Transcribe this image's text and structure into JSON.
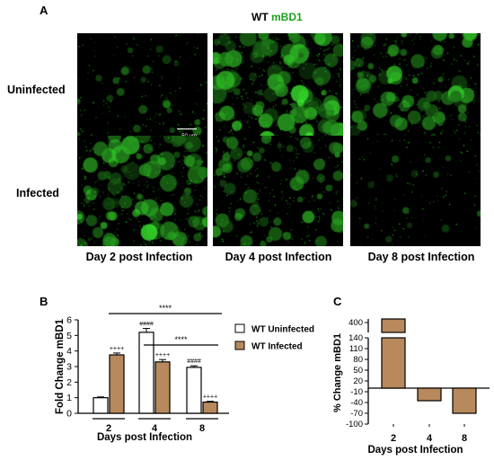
{
  "panel_a": {
    "letter": "A",
    "title_prefix": "WT",
    "title_marker": "mBD1",
    "row_labels": [
      "Uninfected",
      "Infected"
    ],
    "col_labels": [
      "Day 2 post Infection",
      "Day 4 post Infection",
      "Day 8 post Infection"
    ],
    "scale_bar": "50 μm",
    "fluorescence_color": "#2fd42f",
    "intensity": [
      [
        0.25,
        0.9,
        0.7
      ],
      [
        0.85,
        0.6,
        0.15
      ]
    ]
  },
  "chart_data": [
    {
      "panel": "B",
      "type": "bar",
      "title": "",
      "xlabel": "Days post Infection",
      "ylabel": "Fold Change mBD1",
      "categories": [
        "2",
        "4",
        "8"
      ],
      "ylim": [
        0,
        6
      ],
      "yticks": [
        "0",
        "1",
        "2",
        "3",
        "4",
        "5",
        "6"
      ],
      "series": [
        {
          "name": "WT Uninfected",
          "color": "#ffffff",
          "values": [
            1.0,
            5.2,
            2.95
          ],
          "errors": [
            0.05,
            0.25,
            0.1
          ],
          "annotations": [
            "",
            "####",
            "####"
          ]
        },
        {
          "name": "WT Infected",
          "color": "#b8895c",
          "values": [
            3.75,
            3.3,
            0.72
          ],
          "errors": [
            0.12,
            0.15,
            0.05
          ],
          "annotations": [
            "++++",
            "++++",
            "++++"
          ]
        }
      ],
      "significance": [
        {
          "label": "****",
          "from_category": "2",
          "to_category": "8"
        },
        {
          "label": "****",
          "from_category": "4",
          "to_category": "8"
        }
      ],
      "legend": "right"
    },
    {
      "panel": "C",
      "type": "bar",
      "title": "",
      "xlabel": "Days post Infection",
      "ylabel": "% Change mBD1",
      "categories": [
        "2",
        "4",
        "8"
      ],
      "values": [
        400,
        -35,
        -70
      ],
      "color": "#b8895c",
      "axis_break": [
        140,
        380
      ],
      "yticks_lower": [
        "-100",
        "-70",
        "-40",
        "-10",
        "20",
        "50",
        "80",
        "110",
        "140"
      ],
      "yticks_upper": [
        "400"
      ]
    }
  ]
}
